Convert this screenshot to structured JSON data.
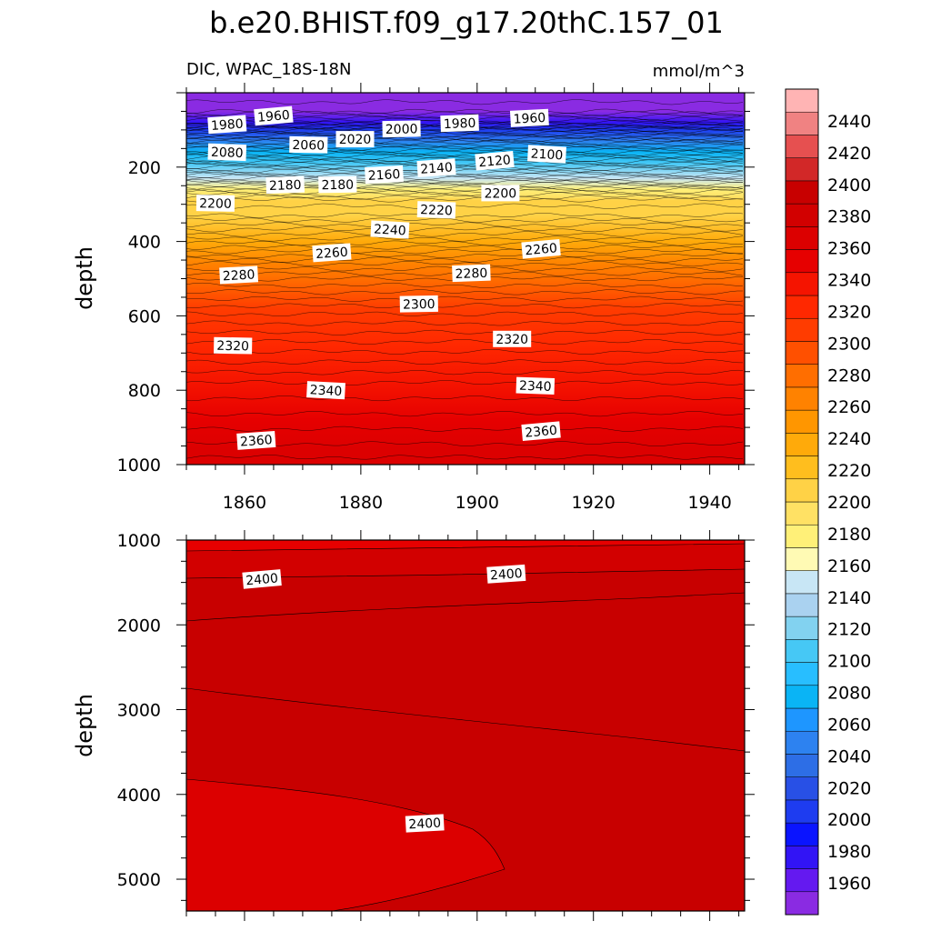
{
  "figure": {
    "title": "b.e20.BHIST.f09_g17.20thC.157_01",
    "variable_label": "DIC, WPAC_18S-18N",
    "units": "mmol/m^3"
  },
  "chart_data": [
    {
      "type": "heatmap",
      "panel": "upper",
      "ylabel": "depth",
      "xlim": [
        1850,
        1946
      ],
      "ylim": [
        0,
        1000
      ],
      "y_inverted": true,
      "x_ticks": [
        1860,
        1880,
        1900,
        1920,
        1940
      ],
      "y_ticks": [
        200,
        400,
        600,
        800,
        1000
      ],
      "profile": [
        [
          0,
          1940
        ],
        [
          50,
          1950
        ],
        [
          80,
          1975
        ],
        [
          100,
          2010
        ],
        [
          130,
          2050
        ],
        [
          160,
          2080
        ],
        [
          190,
          2110
        ],
        [
          230,
          2150
        ],
        [
          260,
          2180
        ],
        [
          280,
          2195
        ],
        [
          290,
          2202
        ],
        [
          330,
          2210
        ],
        [
          400,
          2238
        ],
        [
          460,
          2265
        ],
        [
          500,
          2280
        ],
        [
          580,
          2302
        ],
        [
          680,
          2322
        ],
        [
          780,
          2340
        ],
        [
          880,
          2352
        ],
        [
          960,
          2362
        ],
        [
          1000,
          2368
        ]
      ],
      "contour_labels": [
        {
          "value": "1960",
          "x": 1865,
          "y": 62
        },
        {
          "value": "1980",
          "x": 1857,
          "y": 85
        },
        {
          "value": "1960",
          "x": 1909,
          "y": 68
        },
        {
          "value": "1980",
          "x": 1897,
          "y": 82
        },
        {
          "value": "2000",
          "x": 1887,
          "y": 97
        },
        {
          "value": "2020",
          "x": 1879,
          "y": 125
        },
        {
          "value": "2060",
          "x": 1871,
          "y": 140
        },
        {
          "value": "2080",
          "x": 1857,
          "y": 160
        },
        {
          "value": "2100",
          "x": 1912,
          "y": 165
        },
        {
          "value": "2120",
          "x": 1903,
          "y": 183
        },
        {
          "value": "2140",
          "x": 1893,
          "y": 202
        },
        {
          "value": "2160",
          "x": 1884,
          "y": 220
        },
        {
          "value": "2180",
          "x": 1867,
          "y": 248
        },
        {
          "value": "2180",
          "x": 1876,
          "y": 247
        },
        {
          "value": "2200",
          "x": 1904,
          "y": 270
        },
        {
          "value": "2200",
          "x": 1855,
          "y": 297
        },
        {
          "value": "2220",
          "x": 1893,
          "y": 315
        },
        {
          "value": "2240",
          "x": 1885,
          "y": 368
        },
        {
          "value": "2260",
          "x": 1911,
          "y": 420
        },
        {
          "value": "2260",
          "x": 1875,
          "y": 430
        },
        {
          "value": "2280",
          "x": 1859,
          "y": 490
        },
        {
          "value": "2280",
          "x": 1899,
          "y": 485
        },
        {
          "value": "2300",
          "x": 1890,
          "y": 568
        },
        {
          "value": "2320",
          "x": 1906,
          "y": 662
        },
        {
          "value": "2320",
          "x": 1858,
          "y": 680
        },
        {
          "value": "2340",
          "x": 1910,
          "y": 788
        },
        {
          "value": "2340",
          "x": 1874,
          "y": 800
        },
        {
          "value": "2360",
          "x": 1911,
          "y": 910
        },
        {
          "value": "2360",
          "x": 1862,
          "y": 935
        }
      ]
    },
    {
      "type": "heatmap",
      "panel": "lower",
      "ylabel": "depth",
      "xlim": [
        1850,
        1946
      ],
      "ylim": [
        1000,
        5375
      ],
      "y_inverted": true,
      "y_ticks": [
        1000,
        2000,
        3000,
        4000,
        5000
      ],
      "contour_labels": [
        {
          "value": "2400",
          "x": 1863,
          "y": 1460
        },
        {
          "value": "2400",
          "x": 1905,
          "y": 1400
        },
        {
          "value": "2400",
          "x": 1891,
          "y": 4340
        }
      ]
    }
  ],
  "colorbar": {
    "levels": [
      1960,
      1980,
      2000,
      2020,
      2040,
      2060,
      2080,
      2100,
      2120,
      2140,
      2160,
      2180,
      2200,
      2220,
      2240,
      2260,
      2280,
      2300,
      2320,
      2340,
      2360,
      2380,
      2400,
      2420,
      2440
    ],
    "colors": [
      "#8a2be2",
      "#6419f0",
      "#3214f5",
      "#0a14ff",
      "#1e3cf0",
      "#2850e6",
      "#2d6ee6",
      "#2d82f0",
      "#1e96ff",
      "#0ab4f5",
      "#28beff",
      "#46c8f5",
      "#82d2f0",
      "#aad2f0",
      "#c8e6f5",
      "#fffab4",
      "#fff078",
      "#ffe164",
      "#ffd246",
      "#ffbe1e",
      "#ffaa0a",
      "#ff9600",
      "#ff8200",
      "#ff6e00",
      "#ff5000",
      "#ff3c00",
      "#ff2800",
      "#f51400",
      "#e60000",
      "#dc0000",
      "#d20000",
      "#c80000",
      "#d22828",
      "#e65050",
      "#f08282",
      "#ffb4b4"
    ]
  }
}
